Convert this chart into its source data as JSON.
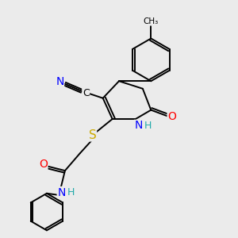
{
  "bg_color": "#ebebeb",
  "bond_color": "#000000",
  "bond_width": 1.4,
  "atom_colors": {
    "N": "#0000ff",
    "O": "#ff0000",
    "S": "#ccaa00",
    "N_cn": "#0000cc",
    "H": "#22aaaa"
  },
  "font_size": 9.0,
  "figsize": [
    3.0,
    3.0
  ],
  "dpi": 100
}
